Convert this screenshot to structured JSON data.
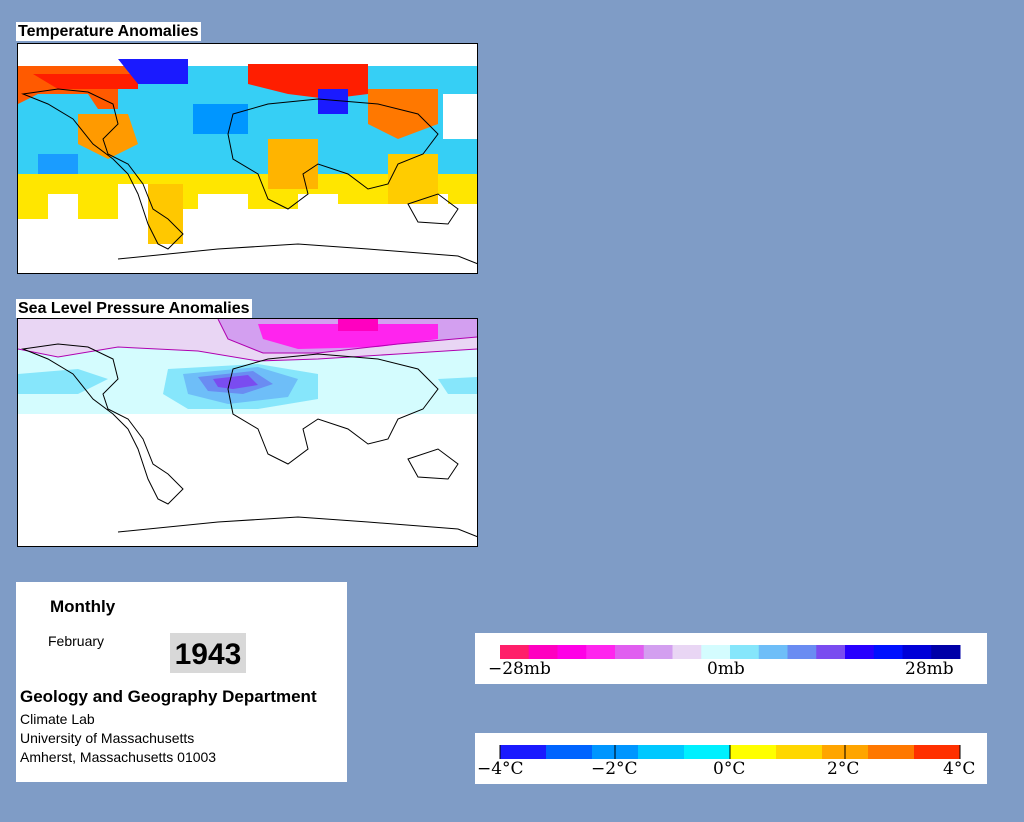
{
  "temperature_map": {
    "title": "Temperature Anomalies",
    "no_data_color": "#ffffff",
    "coastline_color": "#000000"
  },
  "pressure_map": {
    "title": "Sea Level Pressure Anomalies",
    "no_data_color": "#ffffff",
    "contour_color": "#b000b0"
  },
  "info": {
    "mode": "Monthly",
    "month": "February",
    "year": "1943",
    "department": "Geology and Geography Department",
    "lab": "Climate Lab",
    "university": "University of Massachusetts",
    "address": "Amherst, Massachusetts 01003"
  },
  "pressure_legend": {
    "labels": {
      "low": "−28mb",
      "mid": "0mb",
      "high": "28mb"
    },
    "colors": [
      "#ff1f6a",
      "#ff00c0",
      "#ff00e6",
      "#ff24ee",
      "#e05ef0",
      "#d39ff0",
      "#e9d6f4",
      "#d4fcfe",
      "#86e6fb",
      "#6ebef8",
      "#6a8cf2",
      "#7a4cf0",
      "#2800ff",
      "#0010ff",
      "#0000d8",
      "#0000a8"
    ]
  },
  "temperature_legend": {
    "labels": {
      "m4": "−4°C",
      "m2": "−2°C",
      "zero": "0°C",
      "p2": "2°C",
      "p4": "4°C"
    },
    "colors": [
      "#1a1aff",
      "#0064ff",
      "#0096ff",
      "#00c8ff",
      "#00f0ff",
      "#ffff00",
      "#ffd700",
      "#ffa500",
      "#ff7800",
      "#ff3000"
    ]
  }
}
